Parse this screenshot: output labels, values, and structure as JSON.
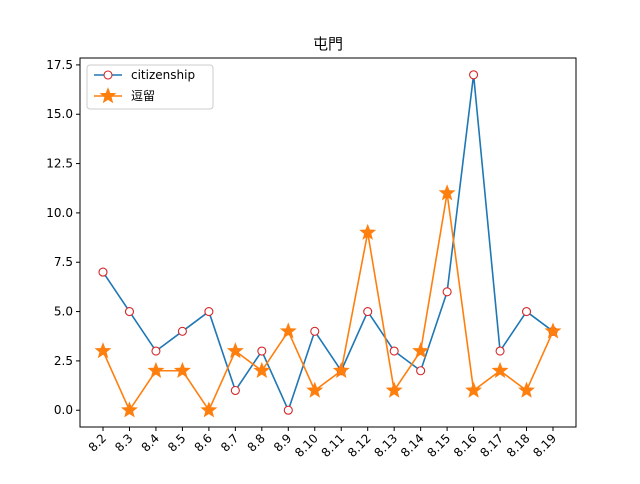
{
  "chart_data": {
    "type": "line",
    "title": "屯門",
    "xlabel": "",
    "ylabel": "",
    "categories": [
      "8.2",
      "8.3",
      "8.4",
      "8.5",
      "8.6",
      "8.7",
      "8.8",
      "8.9",
      "8.10",
      "8.11",
      "8.12",
      "8.13",
      "8.14",
      "8.15",
      "8.16",
      "8.17",
      "8.18",
      "8.19"
    ],
    "ylim": [
      -0.85,
      17.85
    ],
    "yticks": [
      "0.0",
      "2.5",
      "5.0",
      "7.5",
      "10.0",
      "12.5",
      "15.0",
      "17.5"
    ],
    "ytick_values": [
      0,
      2.5,
      5,
      7.5,
      10,
      12.5,
      15,
      17.5
    ],
    "grid": false,
    "legend_position": "upper-left",
    "series": [
      {
        "name": "citizenship",
        "color": "#1f77b4",
        "marker": "circle",
        "marker_edge": "#d62728",
        "marker_face": "#ffffff",
        "values": [
          7,
          5,
          3,
          4,
          5,
          1,
          3,
          0,
          4,
          2,
          5,
          3,
          2,
          6,
          17,
          3,
          5,
          4
        ]
      },
      {
        "name": "逗留",
        "color": "#ff7f0e",
        "marker": "star",
        "marker_edge": "#ff7f0e",
        "marker_face": "#ff7f0e",
        "values": [
          3,
          0,
          2,
          2,
          0,
          3,
          2,
          4,
          1,
          2,
          9,
          1,
          3,
          11,
          1,
          2,
          1,
          4
        ]
      }
    ]
  }
}
